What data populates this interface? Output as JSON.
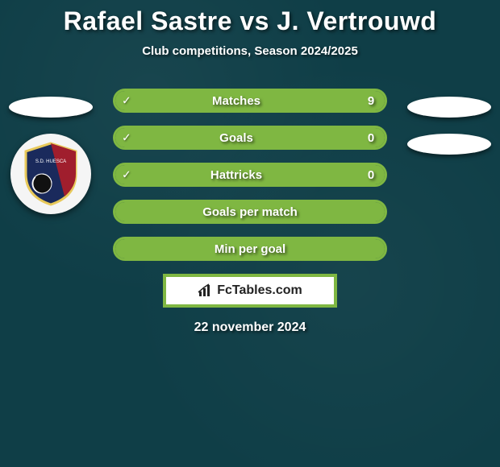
{
  "title": "Rafael Sastre vs J. Vertrouwd",
  "subtitle": "Club competitions, Season 2024/2025",
  "date": "22 november 2024",
  "logo_text": "FcTables.com",
  "colors": {
    "background": "#0f3e47",
    "accent": "#7fb742",
    "text": "#ffffff",
    "logo_bg": "#ffffff",
    "logo_text": "#222222"
  },
  "stats": [
    {
      "label": "Matches",
      "value": "9",
      "fill_pct": 100,
      "check": true
    },
    {
      "label": "Goals",
      "value": "0",
      "fill_pct": 100,
      "check": true
    },
    {
      "label": "Hattricks",
      "value": "0",
      "fill_pct": 100,
      "check": true
    },
    {
      "label": "Goals per match",
      "value": "",
      "fill_pct": 100,
      "check": false
    },
    {
      "label": "Min per goal",
      "value": "",
      "fill_pct": 100,
      "check": false
    }
  ],
  "left_side": {
    "ellipses": 1,
    "crest": true
  },
  "right_side": {
    "ellipses": 2,
    "crest": false
  },
  "crest": {
    "primary": "#1a2a5c",
    "stripe": "#a01e2d",
    "border": "#e8c95a"
  }
}
